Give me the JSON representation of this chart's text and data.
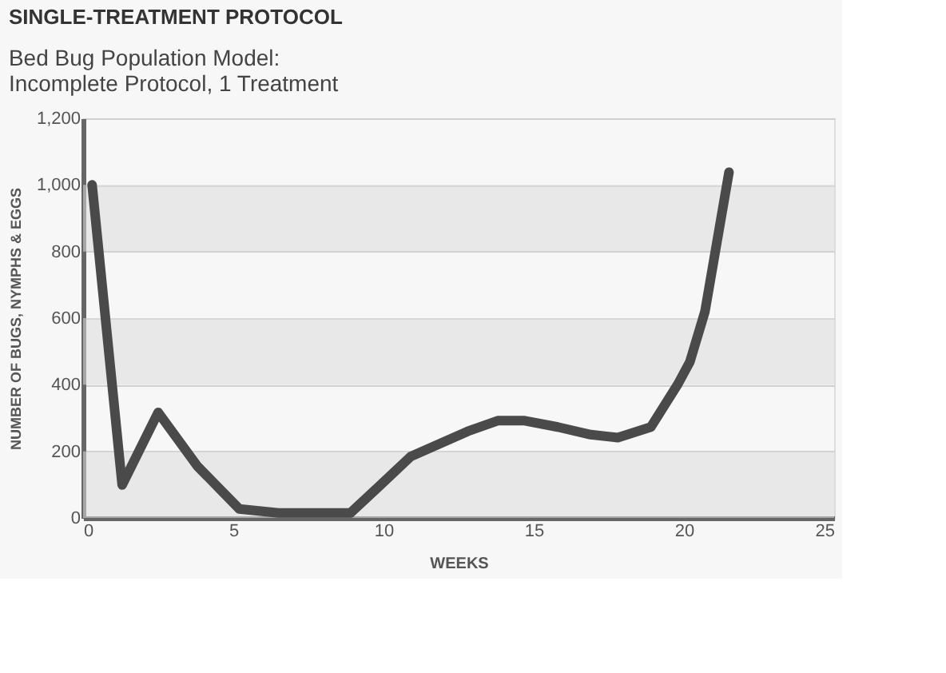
{
  "chart_data": {
    "type": "line",
    "title": "SINGLE-TREATMENT PROTOCOL",
    "subtitle": "Bed Bug Population Model:\nIncomplete Protocol, 1 Treatment",
    "xlabel": "WEEKS",
    "ylabel": "NUMBER OF BUGS, NYMPHS & EGGS",
    "x": [
      0.3,
      1.3,
      2.5,
      3.8,
      5.2,
      6.5,
      8.9,
      9.9,
      10.9,
      12.8,
      13.8,
      14.7,
      15.8,
      16.9,
      17.8,
      18.9,
      19.8,
      20.2,
      20.7,
      21.5
    ],
    "series": [
      {
        "color": "#4a4a4a",
        "values": [
          1000,
          99,
          317,
          156,
          27,
          15,
          15,
          99,
          184,
          260,
          292,
          292,
          273,
          250,
          241,
          273,
          402,
          469,
          620,
          1038
        ]
      }
    ],
    "xlim": [
      0,
      25
    ],
    "xticks": [
      0,
      5,
      10,
      15,
      20,
      25
    ],
    "ylim": [
      0,
      1200
    ],
    "yticks": [
      0,
      {
        "value": 200,
        "label": "200"
      },
      {
        "value": 400,
        "label": "400"
      },
      {
        "value": 600,
        "label": "600"
      },
      {
        "value": 800,
        "label": "800"
      },
      {
        "value": 1000,
        "label": "1,000"
      },
      {
        "value": 1200,
        "label": "1,200"
      }
    ],
    "grid": "y",
    "marker": "none",
    "line_style": "solid"
  }
}
